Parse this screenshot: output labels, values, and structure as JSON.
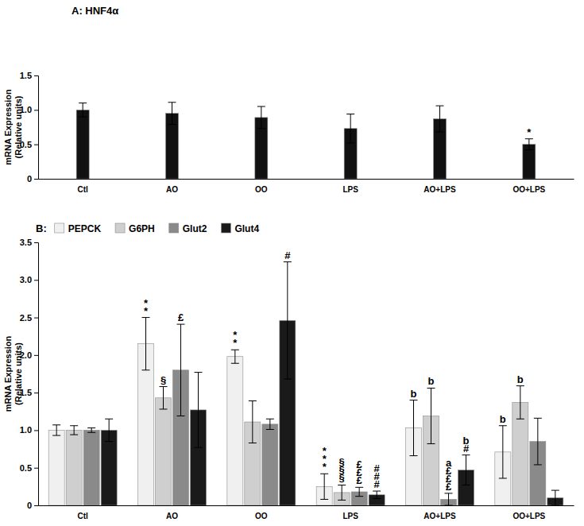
{
  "chart_data": [
    {
      "type": "bar",
      "title": "A: HNF4α",
      "ylabel": [
        "mRNA Expression",
        "(Relative units)"
      ],
      "categories": [
        "Ctl",
        "AO",
        "OO",
        "LPS",
        "AO+LPS",
        "OO+LPS"
      ],
      "values": [
        1.0,
        0.95,
        0.89,
        0.73,
        0.87,
        0.5
      ],
      "errors": [
        0.1,
        0.16,
        0.16,
        0.21,
        0.19,
        0.08
      ],
      "annotations": [
        null,
        null,
        null,
        null,
        null,
        "*"
      ],
      "color": "#111111",
      "ylim": [
        0,
        1.5
      ],
      "yticks": [
        0,
        0.5,
        {
          "value": 1,
          "label": "1.0"
        },
        1.5
      ],
      "grid": false
    },
    {
      "type": "bar",
      "title": "B:",
      "ylabel": [
        "mRNA Expression",
        "(Relative units)"
      ],
      "categories": [
        "Ctl",
        "AO",
        "OO",
        "LPS",
        "AO+LPS",
        "OO+LPS"
      ],
      "series": [
        {
          "name": "PEPCK",
          "color": "#f0f0f0",
          "values": [
            1.0,
            2.15,
            1.98,
            0.25,
            1.03,
            0.71
          ],
          "errors": [
            0.07,
            0.35,
            0.09,
            0.17,
            0.37,
            0.35
          ],
          "annotations": [
            null,
            "**",
            "**",
            "***",
            "b",
            "b"
          ]
        },
        {
          "name": "G6PH",
          "color": "#cfcfcf",
          "values": [
            1.0,
            1.43,
            1.11,
            0.17,
            1.19,
            1.37
          ],
          "errors": [
            0.06,
            0.15,
            0.28,
            0.1,
            0.37,
            0.22
          ],
          "annotations": [
            null,
            "§",
            null,
            "§§§",
            "b",
            "b"
          ]
        },
        {
          "name": "Glut2",
          "color": "#8a8a8a",
          "values": [
            1.0,
            1.8,
            1.08,
            0.18,
            0.08,
            0.85
          ],
          "errors": [
            0.03,
            0.61,
            0.07,
            0.06,
            0.08,
            0.31
          ],
          "annotations": [
            null,
            "£",
            null,
            "£££",
            "a£££",
            null
          ]
        },
        {
          "name": "Glut4",
          "color": "#1a1a1a",
          "values": [
            1.0,
            1.27,
            2.46,
            0.14,
            0.47,
            0.1
          ],
          "errors": [
            0.15,
            0.5,
            0.78,
            0.05,
            0.2,
            0.1
          ],
          "annotations": [
            null,
            null,
            "#",
            "###",
            "b#",
            null
          ]
        }
      ],
      "legend": "top-left",
      "ylim": [
        0,
        3.5
      ],
      "yticks": [
        0,
        0.5,
        {
          "value": 1,
          "label": "1.0"
        },
        1.5,
        {
          "value": 2,
          "label": "2.0"
        },
        2.5,
        {
          "value": 3,
          "label": "3.0"
        },
        3.5
      ],
      "grid": false
    }
  ]
}
